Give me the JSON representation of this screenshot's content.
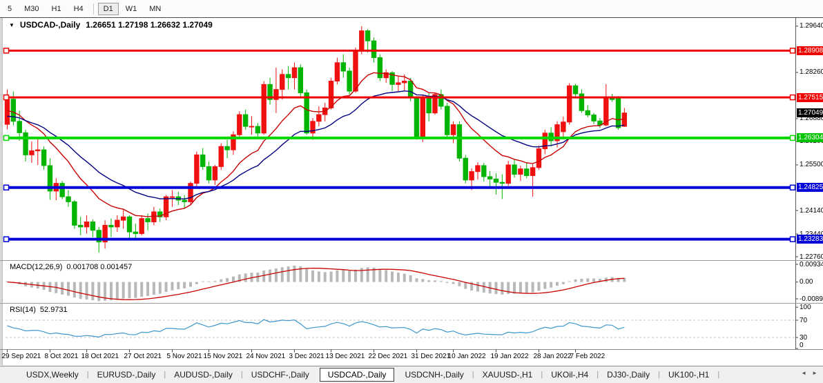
{
  "toolbar": {
    "items": [
      {
        "label": "5",
        "active": false
      },
      {
        "label": "M30",
        "active": false
      },
      {
        "label": "H1",
        "active": false
      },
      {
        "label": "H4",
        "active": false
      },
      {
        "label": "D1",
        "active": true
      },
      {
        "label": "W1",
        "active": false
      },
      {
        "label": "MN",
        "active": false
      }
    ]
  },
  "chart": {
    "arrow": "▼",
    "title": "USDCAD-,Daily",
    "ohlc": "1.26651 1.27198 1.26632 1.27049"
  },
  "indicators": {
    "macd_label": "MACD(12,26,9)",
    "macd_values": "0.001708 0.001457",
    "rsi_label": "RSI(14)",
    "rsi_value": "52.9731"
  },
  "price_axis": {
    "ticks": [
      {
        "label": "1.29640",
        "price": 1.2964
      },
      {
        "label": "1.28260",
        "price": 1.2826
      },
      {
        "label": "1.26880",
        "price": 1.2688
      },
      {
        "label": "1.26200",
        "price": 1.262
      },
      {
        "label": "1.25500",
        "price": 1.255
      },
      {
        "label": "1.24140",
        "price": 1.2414
      },
      {
        "label": "1.23440",
        "price": 1.2344
      },
      {
        "label": "1.22760",
        "price": 1.2276
      }
    ],
    "badges": [
      {
        "label": "1.28908",
        "price": 1.28908,
        "color": "#f00000",
        "marker": true
      },
      {
        "label": "1.27515",
        "price": 1.27515,
        "color": "#f00000",
        "marker": true
      },
      {
        "label": "1.27049",
        "price": 1.27049,
        "color": "#000000",
        "marker": false
      },
      {
        "label": "1.26304",
        "price": 1.26304,
        "color": "#00c400",
        "marker": true
      },
      {
        "label": "1.24825",
        "price": 1.24825,
        "color": "#0000d8",
        "marker": true
      },
      {
        "label": "1.23283",
        "price": 1.23283,
        "color": "#0000d8",
        "marker": true
      }
    ]
  },
  "macd_axis": [
    "0.009345",
    "0.00",
    "-0.00890"
  ],
  "rsi_axis": [
    "100",
    "70",
    "30",
    "0"
  ],
  "time_axis": [
    {
      "label": "29 Sep 2021",
      "i": 0
    },
    {
      "label": "8 Oct 2021",
      "i": 7
    },
    {
      "label": "18 Oct 2021",
      "i": 13
    },
    {
      "label": "27 Oct 2021",
      "i": 20
    },
    {
      "label": "5 Nov 2021",
      "i": 27
    },
    {
      "label": "15 Nov 2021",
      "i": 33
    },
    {
      "label": "24 Nov 2021",
      "i": 40
    },
    {
      "label": "3 Dec 2021",
      "i": 47
    },
    {
      "label": "13 Dec 2021",
      "i": 53
    },
    {
      "label": "22 Dec 2021",
      "i": 60
    },
    {
      "label": "31 Dec 2021",
      "i": 67
    },
    {
      "label": "10 Jan 2022",
      "i": 73
    },
    {
      "label": "19 Jan 2022",
      "i": 80
    },
    {
      "label": "28 Jan 2022",
      "i": 87
    },
    {
      "label": "7 Feb 2022",
      "i": 93
    }
  ],
  "tabs": {
    "items": [
      {
        "label": "USDX,Weekly",
        "active": false
      },
      {
        "label": "EURUSD-,Daily",
        "active": false
      },
      {
        "label": "AUDUSD-,Daily",
        "active": false
      },
      {
        "label": "USDCHF-,Daily",
        "active": false
      },
      {
        "label": "USDCAD-,Daily",
        "active": true
      },
      {
        "label": "USDCNH-,Daily",
        "active": false
      },
      {
        "label": "XAUUSD-,H1",
        "active": false
      },
      {
        "label": "UKOil-,H4",
        "active": false
      },
      {
        "label": "DJ30-,Daily",
        "active": false
      },
      {
        "label": "UK100-,H1",
        "active": false
      }
    ],
    "scroll_left": "◄",
    "scroll_right": "►"
  },
  "chart_data": {
    "type": "candlestick",
    "symbol": "USDCAD",
    "timeframe": "Daily",
    "ohlc_current": {
      "open": 1.26651,
      "high": 1.27198,
      "low": 1.26632,
      "close": 1.27049
    },
    "price_range": {
      "top": 1.2974,
      "bottom": 1.2272
    },
    "up_color": "#ef1010",
    "down_color": "#00b400",
    "hlines": [
      {
        "price": 1.28908,
        "color": "#ee0000",
        "width": 3
      },
      {
        "price": 1.27515,
        "color": "#ee0000",
        "width": 3
      },
      {
        "price": 1.26304,
        "color": "#00d800",
        "width": 4
      },
      {
        "price": 1.24825,
        "color": "#0000d8",
        "width": 4
      },
      {
        "price": 1.23283,
        "color": "#0000d8",
        "width": 4
      }
    ],
    "ma": [
      {
        "period": 13,
        "seed": 1.2712,
        "color": "#c80000"
      },
      {
        "period": 26,
        "seed": 1.2695,
        "color": "#000080"
      }
    ],
    "macd": {
      "fast": 12,
      "slow": 26,
      "signal": 9,
      "max": 0.009345,
      "min": -0.0089,
      "bar_color": "#b8b8b8",
      "signal_color": "#c80000"
    },
    "rsi": {
      "period": 14,
      "seed_gain": 0.003,
      "seed_loss": 0.00225,
      "levels": [
        70,
        30
      ],
      "color": "#3d96cc"
    },
    "candles": [
      [
        1.2671,
        1.2775,
        1.2656,
        1.2746
      ],
      [
        1.2746,
        1.2769,
        1.2668,
        1.268
      ],
      [
        1.268,
        1.2712,
        1.2622,
        1.2646
      ],
      [
        1.2646,
        1.2655,
        1.256,
        1.258
      ],
      [
        1.258,
        1.262,
        1.2556,
        1.2592
      ],
      [
        1.2592,
        1.2628,
        1.255,
        1.2595
      ],
      [
        1.2595,
        1.2605,
        1.2535,
        1.2548
      ],
      [
        1.2548,
        1.257,
        1.2446,
        1.2472
      ],
      [
        1.2472,
        1.251,
        1.2445,
        1.2495
      ],
      [
        1.2495,
        1.2502,
        1.2448,
        1.2455
      ],
      [
        1.2455,
        1.2475,
        1.2425,
        1.244
      ],
      [
        1.244,
        1.2445,
        1.236,
        1.237
      ],
      [
        1.237,
        1.2395,
        1.234,
        1.2365
      ],
      [
        1.2365,
        1.24,
        1.2345,
        1.238
      ],
      [
        1.238,
        1.2388,
        1.2335,
        1.2355
      ],
      [
        1.2355,
        1.2365,
        1.2288,
        1.232
      ],
      [
        1.232,
        1.2385,
        1.23,
        1.237
      ],
      [
        1.237,
        1.239,
        1.2335,
        1.2365
      ],
      [
        1.2365,
        1.24,
        1.235,
        1.2385
      ],
      [
        1.2385,
        1.2415,
        1.236,
        1.2395
      ],
      [
        1.2395,
        1.24,
        1.233,
        1.235
      ],
      [
        1.235,
        1.2375,
        1.233,
        1.2345
      ],
      [
        1.2345,
        1.24,
        1.234,
        1.239
      ],
      [
        1.239,
        1.2405,
        1.2355,
        1.238
      ],
      [
        1.238,
        1.2425,
        1.237,
        1.241
      ],
      [
        1.241,
        1.242,
        1.238,
        1.2395
      ],
      [
        1.2395,
        1.246,
        1.2385,
        1.2455
      ],
      [
        1.2455,
        1.2475,
        1.2425,
        1.2455
      ],
      [
        1.2455,
        1.247,
        1.243,
        1.2445
      ],
      [
        1.2445,
        1.246,
        1.242,
        1.244
      ],
      [
        1.244,
        1.25,
        1.243,
        1.2495
      ],
      [
        1.2495,
        1.259,
        1.2485,
        1.258
      ],
      [
        1.258,
        1.26,
        1.2535,
        1.2545
      ],
      [
        1.2545,
        1.256,
        1.2495,
        1.2505
      ],
      [
        1.2505,
        1.255,
        1.249,
        1.2545
      ],
      [
        1.2545,
        1.2615,
        1.2535,
        1.2605
      ],
      [
        1.2605,
        1.2625,
        1.257,
        1.2595
      ],
      [
        1.2595,
        1.265,
        1.258,
        1.264
      ],
      [
        1.264,
        1.271,
        1.263,
        1.27
      ],
      [
        1.27,
        1.2715,
        1.2655,
        1.2665
      ],
      [
        1.2665,
        1.2695,
        1.264,
        1.2665
      ],
      [
        1.2665,
        1.2675,
        1.2635,
        1.2645
      ],
      [
        1.2645,
        1.28,
        1.264,
        1.279
      ],
      [
        1.279,
        1.281,
        1.273,
        1.2745
      ],
      [
        1.2745,
        1.284,
        1.2705,
        1.2775
      ],
      [
        1.2775,
        1.2835,
        1.2745,
        1.282
      ],
      [
        1.282,
        1.2845,
        1.2775,
        1.281
      ],
      [
        1.281,
        1.2855,
        1.2775,
        1.284
      ],
      [
        1.284,
        1.285,
        1.2755,
        1.2765
      ],
      [
        1.2765,
        1.2775,
        1.264,
        1.2645
      ],
      [
        1.2645,
        1.269,
        1.2625,
        1.268
      ],
      [
        1.268,
        1.2725,
        1.2665,
        1.27
      ],
      [
        1.27,
        1.2735,
        1.268,
        1.272
      ],
      [
        1.272,
        1.281,
        1.2715,
        1.28
      ],
      [
        1.28,
        1.287,
        1.279,
        1.2855
      ],
      [
        1.2855,
        1.288,
        1.281,
        1.283
      ],
      [
        1.283,
        1.284,
        1.276,
        1.277
      ],
      [
        1.277,
        1.29,
        1.2765,
        1.289
      ],
      [
        1.289,
        1.2964,
        1.288,
        1.295
      ],
      [
        1.295,
        1.2955,
        1.2885,
        1.292
      ],
      [
        1.292,
        1.293,
        1.2855,
        1.287
      ],
      [
        1.287,
        1.288,
        1.28,
        1.281
      ],
      [
        1.281,
        1.2835,
        1.2795,
        1.2825
      ],
      [
        1.2825,
        1.283,
        1.277,
        1.279
      ],
      [
        1.279,
        1.2815,
        1.277,
        1.2795
      ],
      [
        1.2795,
        1.282,
        1.277,
        1.28
      ],
      [
        1.28,
        1.281,
        1.274,
        1.275
      ],
      [
        1.275,
        1.2755,
        1.2625,
        1.2635
      ],
      [
        1.2635,
        1.276,
        1.2618,
        1.275
      ],
      [
        1.275,
        1.2765,
        1.268,
        1.2705
      ],
      [
        1.2705,
        1.2765,
        1.27,
        1.276
      ],
      [
        1.276,
        1.2775,
        1.2715,
        1.2725
      ],
      [
        1.2725,
        1.2735,
        1.263,
        1.264
      ],
      [
        1.264,
        1.268,
        1.2615,
        1.267
      ],
      [
        1.267,
        1.268,
        1.256,
        1.257
      ],
      [
        1.257,
        1.258,
        1.2495,
        1.2505
      ],
      [
        1.2505,
        1.254,
        1.2475,
        1.253
      ],
      [
        1.253,
        1.2558,
        1.2506,
        1.2548
      ],
      [
        1.2548,
        1.2556,
        1.25,
        1.2515
      ],
      [
        1.2515,
        1.2532,
        1.2478,
        1.2508
      ],
      [
        1.2508,
        1.2525,
        1.2462,
        1.2498
      ],
      [
        1.2498,
        1.2522,
        1.2448,
        1.2495
      ],
      [
        1.2495,
        1.2562,
        1.2488,
        1.255
      ],
      [
        1.255,
        1.2565,
        1.2512,
        1.2522
      ],
      [
        1.2522,
        1.2548,
        1.2502,
        1.2538
      ],
      [
        1.2538,
        1.2556,
        1.251,
        1.2518
      ],
      [
        1.2518,
        1.2552,
        1.2455,
        1.2542
      ],
      [
        1.2542,
        1.2608,
        1.2536,
        1.2598
      ],
      [
        1.2598,
        1.2655,
        1.2582,
        1.2645
      ],
      [
        1.2645,
        1.2662,
        1.2605,
        1.2622
      ],
      [
        1.2622,
        1.268,
        1.2602,
        1.267
      ],
      [
        1.2649,
        1.2694,
        1.2628,
        1.2678
      ],
      [
        1.2678,
        1.2794,
        1.267,
        1.2786
      ],
      [
        1.2786,
        1.2792,
        1.2755,
        1.2762
      ],
      [
        1.2762,
        1.2775,
        1.2705,
        1.2712
      ],
      [
        1.2712,
        1.2728,
        1.2692,
        1.2699
      ],
      [
        1.2699,
        1.2705,
        1.2672,
        1.2681
      ],
      [
        1.2681,
        1.269,
        1.266,
        1.2669
      ],
      [
        1.2669,
        1.2791,
        1.2665,
        1.2751
      ],
      [
        1.2751,
        1.2762,
        1.2738,
        1.2745
      ],
      [
        1.2748,
        1.2755,
        1.2655,
        1.2661
      ],
      [
        1.26651,
        1.27198,
        1.26632,
        1.27049
      ]
    ]
  }
}
